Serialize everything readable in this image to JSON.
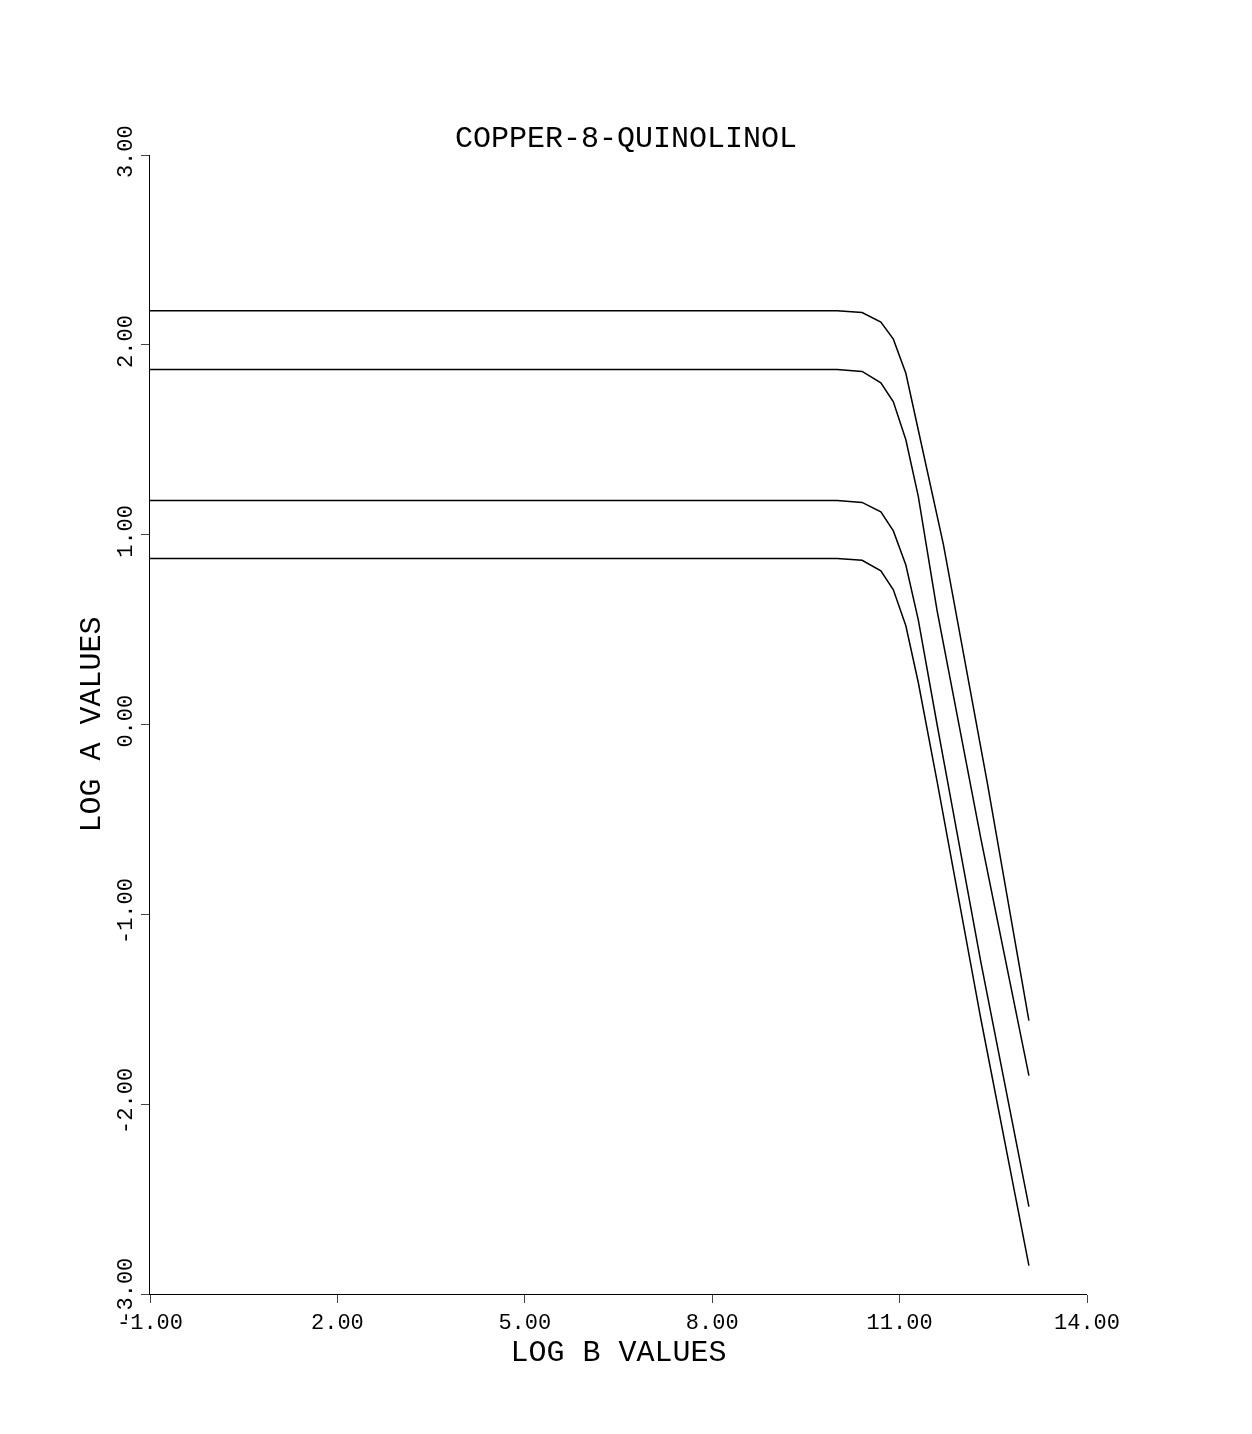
{
  "chart_data": {
    "type": "line",
    "title": "COPPER-8-QUINOLINOL",
    "xlabel": "LOG B VALUES",
    "ylabel": "LOG A VALUES",
    "xlim": [
      -1,
      14
    ],
    "ylim": [
      -3,
      3
    ],
    "xticks": [
      {
        "value": -1,
        "label": "-1.00"
      },
      {
        "value": 2,
        "label": "2.00"
      },
      {
        "value": 5,
        "label": "5.00"
      },
      {
        "value": 8,
        "label": "8.00"
      },
      {
        "value": 11,
        "label": "11.00"
      },
      {
        "value": 14,
        "label": "14.00"
      }
    ],
    "yticks": [
      {
        "value": -3,
        "label": "-3.00"
      },
      {
        "value": -2,
        "label": "-2.00"
      },
      {
        "value": -1,
        "label": "-1.00"
      },
      {
        "value": 0,
        "label": "0.00"
      },
      {
        "value": 1,
        "label": "1.00"
      },
      {
        "value": 2,
        "label": "2.00"
      },
      {
        "value": 3,
        "label": "3.00"
      }
    ],
    "grid": false,
    "marker": "none",
    "line_style": "solid",
    "series": [
      {
        "color": "#000000",
        "x": [
          -1,
          10,
          10.4,
          10.7,
          10.9,
          11.1,
          11.3,
          11.7,
          12.4,
          13.07
        ],
        "values": [
          2.18,
          2.18,
          2.17,
          2.12,
          2.03,
          1.85,
          1.55,
          0.95,
          -0.3,
          -1.56
        ]
      },
      {
        "color": "#000000",
        "x": [
          -1,
          10,
          10.4,
          10.7,
          10.9,
          11.1,
          11.3,
          11.6,
          12.3,
          13.07
        ],
        "values": [
          1.87,
          1.87,
          1.86,
          1.8,
          1.7,
          1.5,
          1.2,
          0.6,
          -0.6,
          -1.85
        ]
      },
      {
        "color": "#000000",
        "x": [
          -1,
          10,
          10.4,
          10.7,
          10.9,
          11.1,
          11.3,
          11.6,
          12.3,
          13.07
        ],
        "values": [
          1.18,
          1.18,
          1.17,
          1.12,
          1.02,
          0.84,
          0.55,
          0,
          -1.25,
          -2.54
        ]
      },
      {
        "color": "#000000",
        "x": [
          -1,
          10,
          10.4,
          10.7,
          10.9,
          11.1,
          11.3,
          11.6,
          12.3,
          13.07
        ],
        "values": [
          0.875,
          0.875,
          0.865,
          0.81,
          0.71,
          0.52,
          0.22,
          -0.3,
          -1.55,
          -2.85
        ]
      }
    ]
  }
}
